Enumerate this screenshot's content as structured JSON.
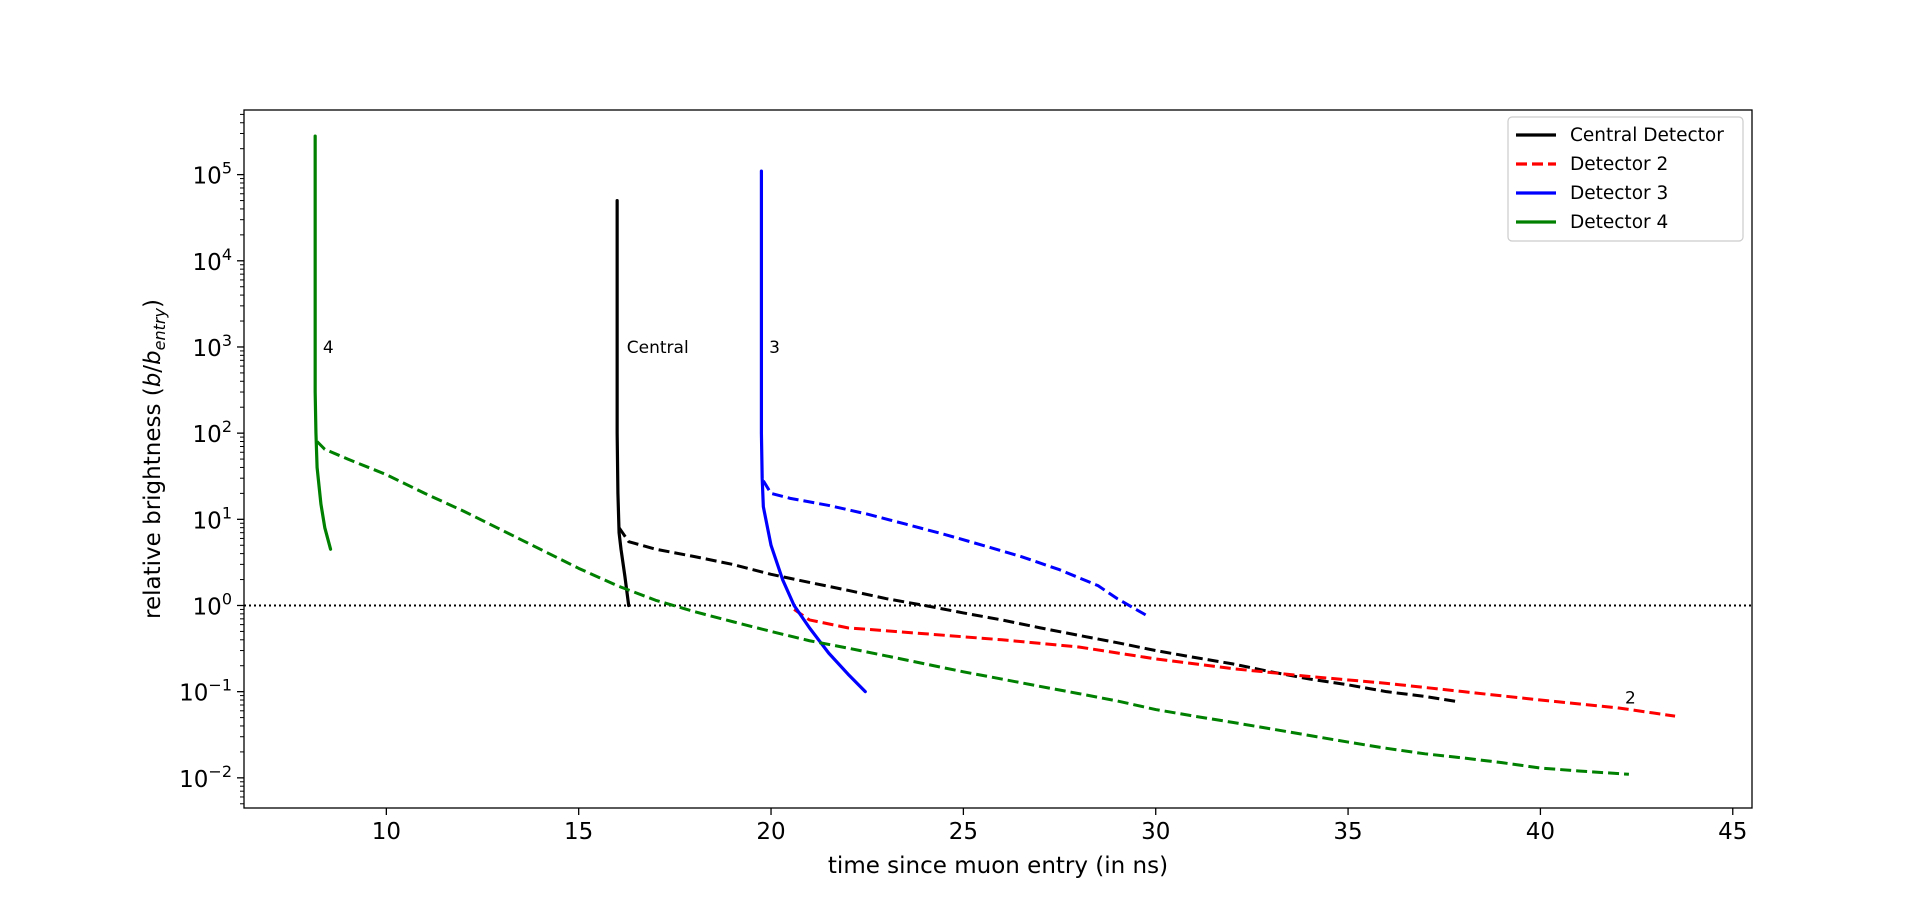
{
  "chart_data": {
    "type": "line",
    "title": "",
    "xlabel": "time since muon entry (in ns)",
    "ylabel": {
      "prefix": "relative brightness (",
      "var": "b",
      "slash": "/",
      "var2": "b",
      "sub": "entry",
      "suffix": ")"
    },
    "xlim": [
      6.3,
      45.5
    ],
    "ylim_log10": [
      -2.35,
      5.75
    ],
    "y_scale": "log",
    "grid": false,
    "legend_position": "top-right",
    "x_ticks": [
      {
        "value": 10,
        "label": "10"
      },
      {
        "value": 15,
        "label": "15"
      },
      {
        "value": 20,
        "label": "20"
      },
      {
        "value": 25,
        "label": "25"
      },
      {
        "value": 30,
        "label": "30"
      },
      {
        "value": 35,
        "label": "35"
      },
      {
        "value": 40,
        "label": "40"
      },
      {
        "value": 45,
        "label": "45"
      }
    ],
    "y_ticks": [
      {
        "exp": -2,
        "base": "10",
        "sup": "−2"
      },
      {
        "exp": -1,
        "base": "10",
        "sup": "−1"
      },
      {
        "exp": 0,
        "base": "10",
        "sup": "0"
      },
      {
        "exp": 1,
        "base": "10",
        "sup": "1"
      },
      {
        "exp": 2,
        "base": "10",
        "sup": "2"
      },
      {
        "exp": 3,
        "base": "10",
        "sup": "3"
      },
      {
        "exp": 4,
        "base": "10",
        "sup": "4"
      },
      {
        "exp": 5,
        "base": "10",
        "sup": "5"
      }
    ],
    "reference_line": {
      "y": 1,
      "style": "dotted",
      "color": "#000000"
    },
    "series": [
      {
        "name": "Central Detector",
        "color": "#000000",
        "legend_style": "solid",
        "solid_points": [
          [
            16.0,
            50000
          ],
          [
            16.0,
            3000
          ],
          [
            16.0,
            100
          ],
          [
            16.02,
            20
          ],
          [
            16.05,
            7
          ],
          [
            16.1,
            4.5
          ],
          [
            16.2,
            2.2
          ],
          [
            16.3,
            1.0
          ]
        ],
        "dashed_points": [
          [
            16.05,
            8
          ],
          [
            16.3,
            5.5
          ],
          [
            17.0,
            4.5
          ],
          [
            18.0,
            3.7
          ],
          [
            19.0,
            3.0
          ],
          [
            20.0,
            2.3
          ],
          [
            21.0,
            1.85
          ],
          [
            22.0,
            1.5
          ],
          [
            23.0,
            1.2
          ],
          [
            24.0,
            1.0
          ],
          [
            25.0,
            0.82
          ],
          [
            26.0,
            0.68
          ],
          [
            27.0,
            0.55
          ],
          [
            28.0,
            0.45
          ],
          [
            29.0,
            0.37
          ],
          [
            30.0,
            0.3
          ],
          [
            31.0,
            0.25
          ],
          [
            32.0,
            0.21
          ],
          [
            33.0,
            0.17
          ],
          [
            34.0,
            0.14
          ],
          [
            35.0,
            0.12
          ],
          [
            36.0,
            0.1
          ],
          [
            37.0,
            0.088
          ],
          [
            37.9,
            0.076
          ]
        ]
      },
      {
        "name": "Detector 2",
        "color": "#ff0000",
        "legend_style": "dashed",
        "solid_points": [],
        "dashed_points": [
          [
            20.6,
            0.9
          ],
          [
            21.0,
            0.68
          ],
          [
            22.0,
            0.55
          ],
          [
            24.0,
            0.47
          ],
          [
            26.0,
            0.4
          ],
          [
            28.0,
            0.33
          ],
          [
            30.0,
            0.24
          ],
          [
            32.0,
            0.185
          ],
          [
            34.0,
            0.15
          ],
          [
            36.0,
            0.125
          ],
          [
            38.0,
            0.1
          ],
          [
            40.0,
            0.08
          ],
          [
            42.0,
            0.065
          ],
          [
            43.5,
            0.052
          ]
        ]
      },
      {
        "name": "Detector 3",
        "color": "#0000ff",
        "legend_style": "solid",
        "solid_points": [
          [
            19.75,
            110000
          ],
          [
            19.75,
            3000
          ],
          [
            19.75,
            100
          ],
          [
            19.77,
            30
          ],
          [
            19.8,
            14
          ],
          [
            20.0,
            5
          ],
          [
            20.3,
            2.0
          ],
          [
            20.6,
            1.0
          ],
          [
            21.0,
            0.55
          ],
          [
            21.5,
            0.28
          ],
          [
            22.0,
            0.16
          ],
          [
            22.45,
            0.1
          ]
        ],
        "dashed_points": [
          [
            19.8,
            28
          ],
          [
            20.0,
            20
          ],
          [
            20.5,
            17.5
          ],
          [
            21.5,
            14.5
          ],
          [
            22.5,
            11.5
          ],
          [
            23.5,
            8.8
          ],
          [
            24.5,
            6.7
          ],
          [
            25.5,
            5.0
          ],
          [
            26.5,
            3.7
          ],
          [
            27.5,
            2.6
          ],
          [
            28.5,
            1.7
          ],
          [
            29.0,
            1.2
          ],
          [
            29.8,
            0.75
          ]
        ]
      },
      {
        "name": "Detector 4",
        "color": "#008000",
        "legend_style": "solid",
        "solid_points": [
          [
            8.15,
            280000
          ],
          [
            8.15,
            5000
          ],
          [
            8.15,
            300
          ],
          [
            8.17,
            100
          ],
          [
            8.2,
            40
          ],
          [
            8.3,
            15
          ],
          [
            8.4,
            8
          ],
          [
            8.55,
            4.5
          ]
        ],
        "dashed_points": [
          [
            8.2,
            80
          ],
          [
            8.4,
            65
          ],
          [
            9.0,
            50
          ],
          [
            10.0,
            33
          ],
          [
            11.0,
            20
          ],
          [
            12.0,
            12.5
          ],
          [
            13.0,
            7.5
          ],
          [
            14.0,
            4.5
          ],
          [
            15.0,
            2.7
          ],
          [
            16.0,
            1.7
          ],
          [
            17.0,
            1.15
          ],
          [
            18.0,
            0.85
          ],
          [
            19.0,
            0.65
          ],
          [
            20.0,
            0.5
          ],
          [
            21.0,
            0.39
          ],
          [
            22.0,
            0.32
          ],
          [
            23.0,
            0.26
          ],
          [
            24.0,
            0.21
          ],
          [
            25.0,
            0.17
          ],
          [
            26.0,
            0.14
          ],
          [
            27.0,
            0.115
          ],
          [
            28.0,
            0.095
          ],
          [
            29.0,
            0.078
          ],
          [
            30.0,
            0.062
          ],
          [
            31.0,
            0.052
          ],
          [
            32.0,
            0.044
          ],
          [
            33.0,
            0.037
          ],
          [
            34.0,
            0.031
          ],
          [
            35.0,
            0.026
          ],
          [
            36.0,
            0.022
          ],
          [
            37.0,
            0.019
          ],
          [
            38.0,
            0.017
          ],
          [
            39.0,
            0.015
          ],
          [
            40.0,
            0.013
          ],
          [
            41.0,
            0.012
          ],
          [
            42.3,
            0.011
          ]
        ]
      }
    ],
    "annotations": [
      {
        "text": "4",
        "x": 8.35,
        "y": 1000
      },
      {
        "text": "Central",
        "x": 16.25,
        "y": 1000
      },
      {
        "text": "3",
        "x": 19.95,
        "y": 1000
      },
      {
        "text": "2",
        "x": 42.2,
        "y": 0.085
      }
    ]
  }
}
